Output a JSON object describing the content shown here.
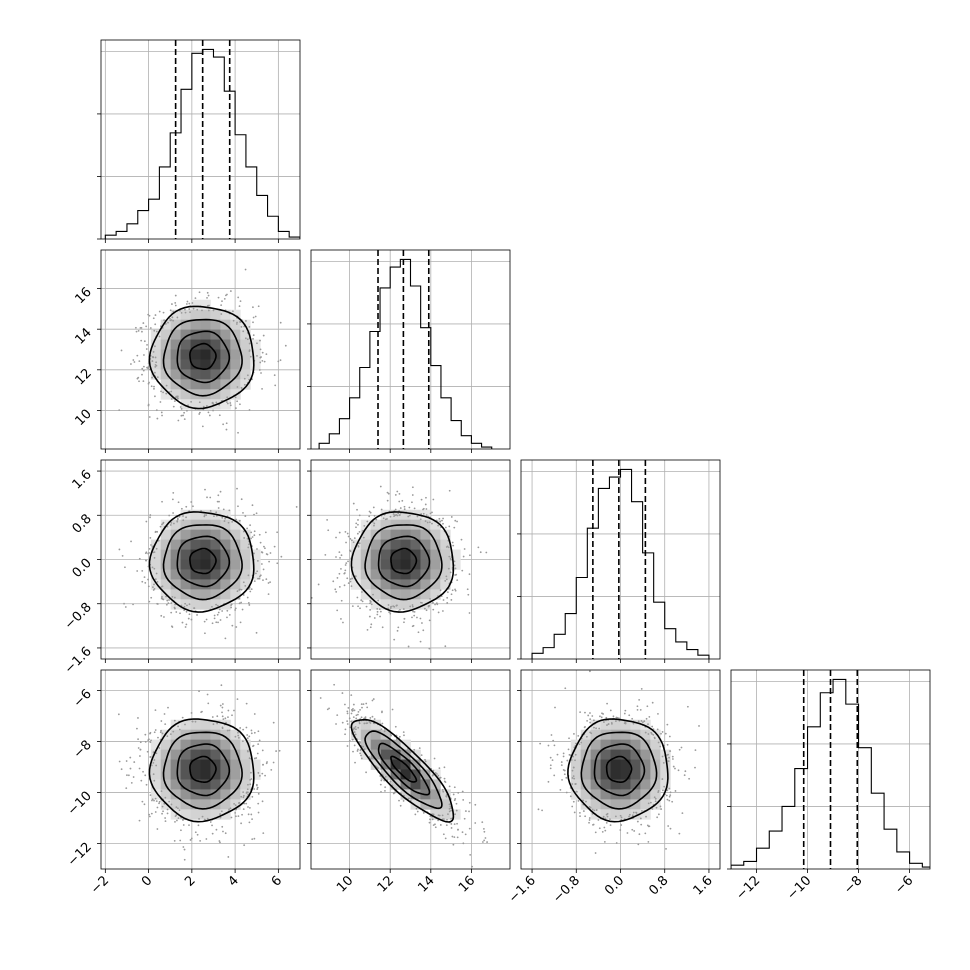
{
  "chart_data": {
    "type": "corner",
    "parameters": [
      {
        "range": [
          -2.2,
          7.0
        ],
        "ticks": [
          -2,
          0,
          2,
          4,
          6
        ],
        "tick_labels": [
          "−2",
          "0",
          "2",
          "4",
          "6"
        ],
        "mean": 2.5,
        "sigma": 1.2,
        "quantiles": [
          1.25,
          2.5,
          3.75
        ],
        "hist_bins": [
          -2.0,
          -1.5,
          -1.0,
          -0.5,
          0.0,
          0.5,
          1.0,
          1.5,
          2.0,
          2.5,
          3.0,
          3.5,
          4.0,
          4.5,
          5.0,
          5.5,
          6.0,
          6.5
        ],
        "hist_counts": [
          20,
          40,
          80,
          150,
          210,
          380,
          560,
          790,
          980,
          1000,
          960,
          780,
          550,
          380,
          230,
          120,
          40,
          10
        ]
      },
      {
        "range": [
          8.1,
          17.9
        ],
        "ticks": [
          10,
          12,
          14,
          16
        ],
        "tick_labels": [
          "10",
          "12",
          "14",
          "16"
        ],
        "mean": 12.65,
        "sigma": 1.25,
        "quantiles": [
          11.4,
          12.65,
          13.9
        ],
        "hist_bins": [
          8.5,
          9.0,
          9.5,
          10.0,
          10.5,
          11.0,
          11.5,
          12.0,
          12.5,
          13.0,
          13.5,
          14.0,
          14.5,
          15.0,
          15.5,
          16.0,
          16.5
        ],
        "hist_counts": [
          30,
          80,
          160,
          270,
          430,
          620,
          850,
          960,
          1000,
          860,
          640,
          440,
          270,
          150,
          70,
          30,
          10
        ]
      },
      {
        "range": [
          -1.8,
          1.8
        ],
        "ticks": [
          -1.6,
          -0.8,
          0.0,
          0.8,
          1.6
        ],
        "tick_labels": [
          "−1.6",
          "−0.8",
          "0.0",
          "0.8",
          "1.6"
        ],
        "mean": -0.03,
        "sigma": 0.45,
        "quantiles": [
          -0.5,
          -0.03,
          0.45
        ],
        "hist_bins": [
          -1.6,
          -1.4,
          -1.2,
          -1.0,
          -0.8,
          -0.6,
          -0.4,
          -0.2,
          0.0,
          0.2,
          0.4,
          0.6,
          0.8,
          1.0,
          1.2,
          1.4
        ],
        "hist_counts": [
          30,
          60,
          130,
          240,
          430,
          690,
          900,
          960,
          1000,
          830,
          560,
          300,
          160,
          90,
          50,
          20
        ]
      },
      {
        "range": [
          -13.0,
          -5.2
        ],
        "ticks": [
          -12,
          -10,
          -8,
          -6
        ],
        "tick_labels": [
          "−12",
          "−10",
          "−8",
          "−6"
        ],
        "mean": -9.1,
        "sigma": 1.0,
        "quantiles": [
          -10.15,
          -9.1,
          -8.05
        ],
        "hist_bins": [
          -13.0,
          -12.5,
          -12.0,
          -11.5,
          -11.0,
          -10.5,
          -10.0,
          -9.5,
          -9.0,
          -8.5,
          -8.0,
          -7.5,
          -7.0,
          -6.5,
          -6.0,
          -5.5
        ],
        "hist_counts": [
          20,
          40,
          110,
          200,
          330,
          530,
          750,
          930,
          1000,
          870,
          640,
          400,
          210,
          90,
          30,
          10
        ]
      }
    ],
    "correlations": {
      "1,0": 0.0,
      "2,0": 0.0,
      "2,1": 0.0,
      "3,0": 0.0,
      "3,1": -0.85,
      "3,2": 0.0
    },
    "contour_levels_sigma": [
      0.5,
      1.0,
      1.5,
      2.0
    ],
    "grid": true,
    "samples_per_panel": 1400
  }
}
